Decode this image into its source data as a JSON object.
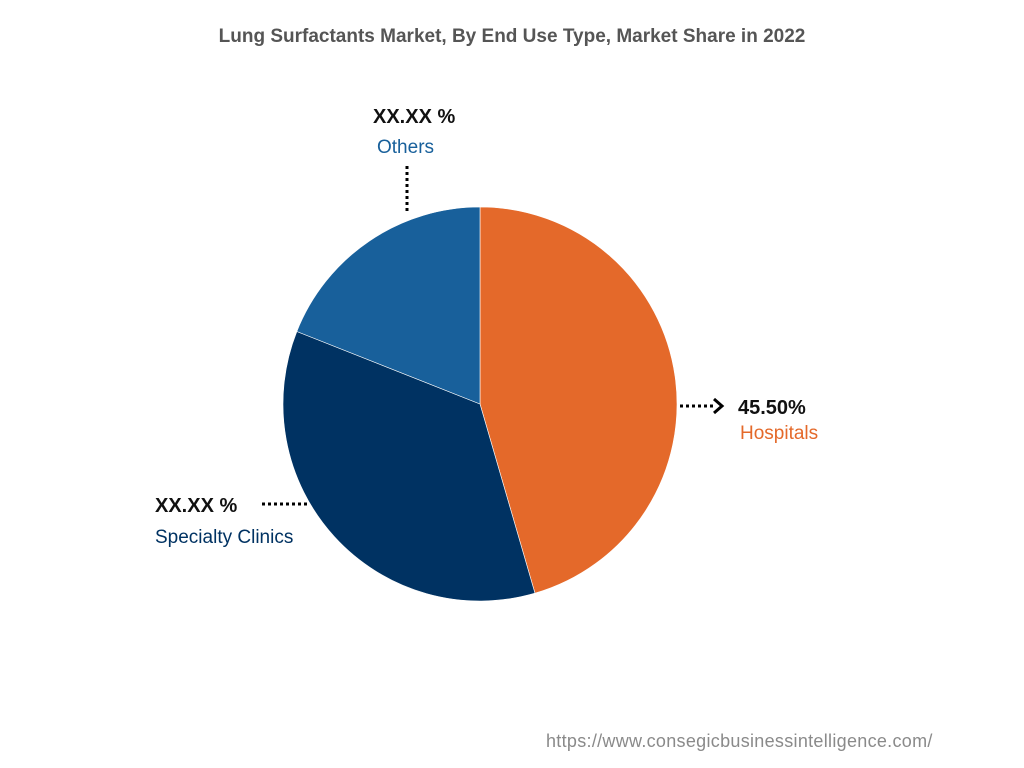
{
  "chart_data": {
    "type": "pie",
    "title": "Lung Surfactants Market, By End Use Type, Market Share in 2022",
    "slices": [
      {
        "label": "Hospitals",
        "value_label": "45.50%",
        "value": 45.5,
        "color": "#e4692a"
      },
      {
        "label": "Specialty Clinics",
        "value_label": "XX.XX %",
        "value": 35.5,
        "color": "#003262"
      },
      {
        "label": "Others",
        "value_label": "XX.XX %",
        "value": 19.0,
        "color": "#18609b"
      }
    ],
    "legend": "none"
  },
  "source": "https://www.consegicbusinessintelligence.com/"
}
